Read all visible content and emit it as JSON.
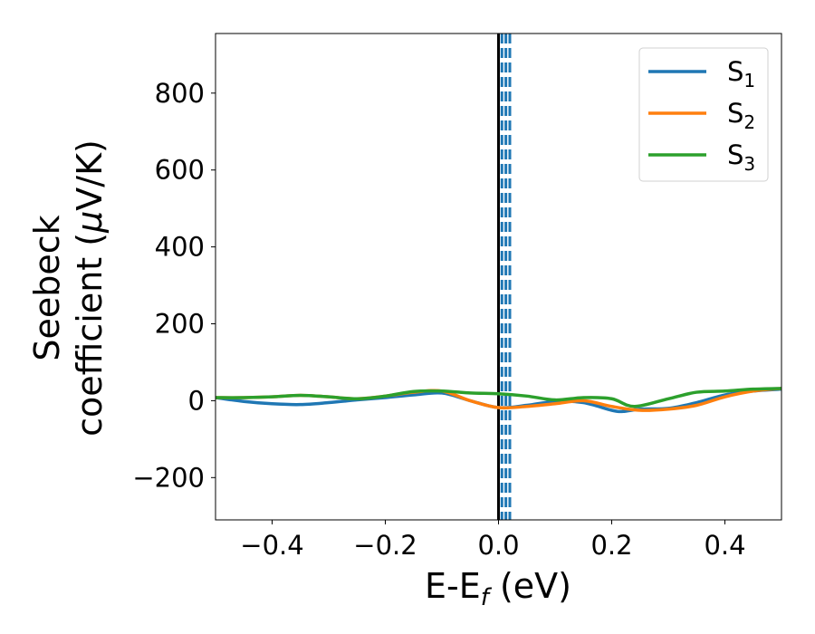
{
  "chart_data": {
    "type": "line",
    "xlabel": {
      "main": "E-E",
      "sub": "f",
      "suffix": " (eV)"
    },
    "ylabel": {
      "line1": "Seebeck",
      "line2_prefix": "coefficient  (",
      "mu": "μ",
      "line2_suffix": "V/K)"
    },
    "xlim": [
      -0.5,
      0.5
    ],
    "ylim": [
      -310,
      955
    ],
    "xticks": [
      -0.4,
      -0.2,
      0.0,
      0.2,
      0.4
    ],
    "xtick_labels": [
      "−0.4",
      "−0.2",
      "0.0",
      "0.2",
      "0.4"
    ],
    "yticks": [
      -200,
      0,
      200,
      400,
      600,
      800
    ],
    "ytick_labels": [
      "−200",
      "0",
      "200",
      "400",
      "600",
      "800"
    ],
    "grid": false,
    "legend_position": "top-right",
    "vertical_lines": [
      {
        "x": 0.0,
        "style": "solid",
        "color": "#000000"
      },
      {
        "x": 0.006,
        "style": "dashed",
        "color": "#1f77b4"
      },
      {
        "x": 0.013,
        "style": "dashed",
        "color": "#1f77b4"
      },
      {
        "x": 0.02,
        "style": "dashed",
        "color": "#1f77b4"
      }
    ],
    "series": [
      {
        "name": "S1",
        "label_main": "S",
        "label_sub": "1",
        "color": "#1f77b4",
        "x": [
          -0.5,
          -0.45,
          -0.4,
          -0.35,
          -0.3,
          -0.25,
          -0.2,
          -0.15,
          -0.1,
          -0.05,
          0.0,
          0.05,
          0.1,
          0.15,
          0.2,
          0.22,
          0.25,
          0.3,
          0.35,
          0.4,
          0.45,
          0.5
        ],
        "values": [
          8,
          -2,
          -8,
          -10,
          -5,
          2,
          8,
          15,
          20,
          0,
          -18,
          -12,
          -2,
          -5,
          -25,
          -28,
          -22,
          -20,
          -5,
          15,
          25,
          30
        ]
      },
      {
        "name": "S2",
        "label_main": "S",
        "label_sub": "2",
        "color": "#ff7f0e",
        "x": [
          -0.5,
          -0.45,
          -0.4,
          -0.35,
          -0.3,
          -0.25,
          -0.2,
          -0.15,
          -0.1,
          -0.05,
          0.0,
          0.05,
          0.1,
          0.15,
          0.2,
          0.25,
          0.3,
          0.35,
          0.4,
          0.45,
          0.5
        ],
        "values": [
          8,
          8,
          10,
          14,
          10,
          5,
          12,
          22,
          25,
          0,
          -18,
          -15,
          -8,
          0,
          -15,
          -25,
          -22,
          -12,
          10,
          25,
          32
        ]
      },
      {
        "name": "S3",
        "label_main": "S",
        "label_sub": "3",
        "color": "#2ca02c",
        "x": [
          -0.5,
          -0.45,
          -0.4,
          -0.35,
          -0.3,
          -0.25,
          -0.2,
          -0.15,
          -0.1,
          -0.05,
          0.0,
          0.05,
          0.1,
          0.15,
          0.2,
          0.24,
          0.3,
          0.35,
          0.4,
          0.45,
          0.5
        ],
        "values": [
          8,
          8,
          10,
          14,
          10,
          5,
          12,
          24,
          25,
          20,
          18,
          12,
          2,
          8,
          5,
          -15,
          5,
          22,
          25,
          30,
          32
        ]
      }
    ]
  }
}
